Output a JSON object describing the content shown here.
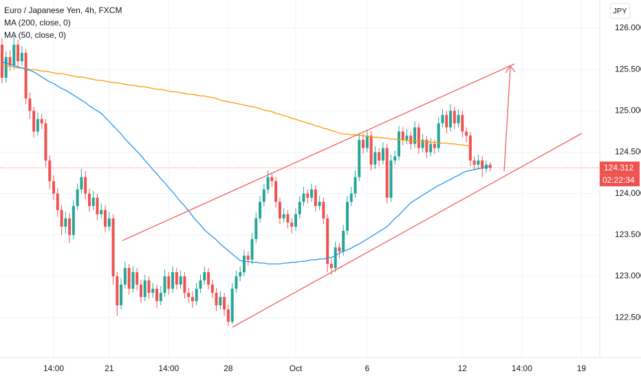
{
  "chart_data": {
    "type": "candlestick",
    "title": "Euro / Japanese Yen, 4h, FXCM",
    "currency": "JPY",
    "last_price": 124.312,
    "countdown": "02:22:34",
    "up_color": "#26a69a",
    "down_color": "#ef5350",
    "grid": true,
    "ylim": [
      122.02,
      126.34
    ],
    "yticks": [
      {
        "value": 122.5,
        "label": "122.500"
      },
      {
        "value": 123,
        "label": "123.000"
      },
      {
        "value": 123.5,
        "label": "123.500"
      },
      {
        "value": 124,
        "label": "124.000"
      },
      {
        "value": 124.5,
        "label": "124.500"
      },
      {
        "value": 125,
        "label": "125.000"
      },
      {
        "value": 125.5,
        "label": "125.500"
      },
      {
        "value": 126,
        "label": "126.000"
      }
    ],
    "categories": [
      null,
      null,
      null,
      null,
      null,
      null,
      null,
      null,
      null,
      null,
      null,
      null,
      null,
      "14:00",
      null,
      null,
      null,
      null,
      null,
      null,
      null,
      null,
      null,
      null,
      null,
      null,
      null,
      "21",
      null,
      null,
      null,
      null,
      null,
      null,
      null,
      null,
      null,
      null,
      null,
      null,
      null,
      null,
      "14:00",
      null,
      null,
      null,
      null,
      null,
      null,
      null,
      null,
      null,
      null,
      null,
      null,
      null,
      null,
      "28",
      null,
      null,
      null,
      null,
      null,
      null,
      null,
      null,
      null,
      null,
      null,
      null,
      null,
      null,
      null,
      null,
      "Oct",
      null,
      null,
      null,
      null,
      null,
      null,
      null,
      null,
      null,
      null,
      null,
      null,
      null,
      null,
      null,
      null,
      null,
      "6",
      null,
      null,
      null,
      null,
      null,
      null,
      null,
      null,
      null,
      null,
      null,
      null,
      null,
      null,
      null,
      null,
      null,
      null,
      null,
      null,
      null,
      null,
      null,
      "12",
      null,
      null,
      null,
      null,
      null,
      null,
      null,
      null,
      null,
      null,
      null,
      null,
      null,
      null,
      "14:00",
      null,
      null,
      null,
      null,
      null,
      null,
      null,
      null,
      null,
      null,
      null,
      null,
      null,
      null,
      "19"
    ],
    "open": [
      125.8,
      125.4,
      125.65,
      125.55,
      125.8,
      125.6,
      125.7,
      125.15,
      125.0,
      124.75,
      124.9,
      124.85,
      124.4,
      124.15,
      124.0,
      123.8,
      123.6,
      123.7,
      123.5,
      123.85,
      124.05,
      124.2,
      124.0,
      123.85,
      123.95,
      123.75,
      123.8,
      123.6,
      123.7,
      123.0,
      122.65,
      122.9,
      123.1,
      122.85,
      123.05,
      122.9,
      122.75,
      122.95,
      122.8,
      122.85,
      122.7,
      122.8,
      123.0,
      122.85,
      123.05,
      122.9,
      123.0,
      122.8,
      122.75,
      122.7,
      122.85,
      122.95,
      123.05,
      122.9,
      122.8,
      122.65,
      122.75,
      122.6,
      122.45,
      122.85,
      123.0,
      123.05,
      123.25,
      123.2,
      123.45,
      123.7,
      123.9,
      124.05,
      124.2,
      124.15,
      123.9,
      123.7,
      123.75,
      123.65,
      123.6,
      123.75,
      123.9,
      124.0,
      123.95,
      124.05,
      123.85,
      123.9,
      123.7,
      123.15,
      123.1,
      123.35,
      123.3,
      123.55,
      123.9,
      124.0,
      124.2,
      124.65,
      124.55,
      124.7,
      124.35,
      124.5,
      124.4,
      124.55,
      123.95,
      124.4,
      124.45,
      124.75,
      124.65,
      124.7,
      124.6,
      124.8,
      124.55,
      124.65,
      124.5,
      124.6,
      124.55,
      124.85,
      124.95,
      124.8,
      125.0,
      124.85,
      124.95,
      124.75,
      124.7,
      124.4,
      124.35,
      124.4,
      124.3,
      124.35,
      null,
      null,
      null,
      null,
      null,
      null,
      null,
      null,
      null,
      null,
      null,
      null,
      null,
      null,
      null,
      null,
      null,
      null,
      null,
      null,
      null,
      null,
      null
    ],
    "high": [
      125.88,
      125.72,
      125.73,
      125.9,
      125.86,
      125.78,
      125.75,
      125.22,
      125.05,
      124.98,
      124.96,
      124.9,
      124.46,
      124.22,
      124.07,
      123.86,
      123.78,
      123.76,
      123.92,
      124.12,
      124.3,
      124.27,
      124.06,
      124.03,
      124.0,
      123.88,
      123.86,
      123.78,
      123.75,
      123.05,
      122.98,
      123.18,
      123.15,
      123.12,
      123.1,
      122.96,
      123.02,
      123.0,
      122.92,
      122.9,
      122.88,
      123.08,
      123.05,
      123.12,
      123.1,
      123.07,
      123.05,
      122.86,
      122.82,
      122.92,
      123.02,
      123.12,
      123.1,
      122.96,
      122.86,
      122.82,
      122.8,
      122.66,
      122.92,
      123.07,
      123.12,
      123.32,
      123.3,
      123.52,
      123.77,
      123.97,
      124.12,
      124.28,
      124.25,
      124.2,
      123.95,
      123.82,
      123.8,
      123.7,
      123.82,
      123.97,
      124.08,
      124.05,
      124.12,
      124.1,
      123.97,
      123.95,
      123.75,
      123.22,
      123.42,
      123.4,
      123.62,
      123.97,
      124.08,
      124.28,
      124.73,
      124.72,
      124.77,
      124.75,
      124.57,
      124.55,
      124.62,
      124.6,
      124.47,
      124.52,
      124.82,
      124.8,
      124.78,
      124.75,
      124.87,
      124.85,
      124.72,
      124.7,
      124.67,
      124.65,
      124.92,
      125.02,
      125.0,
      125.08,
      125.05,
      125.02,
      125.0,
      124.8,
      124.75,
      124.45,
      124.47,
      124.45,
      124.4,
      124.38,
      null,
      null,
      null,
      null,
      null,
      null,
      null,
      null,
      null,
      null,
      null,
      null,
      null,
      null,
      null,
      null,
      null,
      null,
      null,
      null,
      null,
      null,
      null
    ],
    "low": [
      125.33,
      125.34,
      125.48,
      125.5,
      125.53,
      125.55,
      125.08,
      124.9,
      124.68,
      124.7,
      124.78,
      124.32,
      124.05,
      123.92,
      123.72,
      123.5,
      123.52,
      123.4,
      123.45,
      123.8,
      124.0,
      123.93,
      123.78,
      123.8,
      123.68,
      123.7,
      123.53,
      123.55,
      122.9,
      122.52,
      122.6,
      122.85,
      122.78,
      122.8,
      122.83,
      122.68,
      122.7,
      122.73,
      122.74,
      122.62,
      122.65,
      122.75,
      122.78,
      122.8,
      122.84,
      122.85,
      122.73,
      122.68,
      122.62,
      122.65,
      122.8,
      122.9,
      122.84,
      122.74,
      122.58,
      122.6,
      122.52,
      122.4,
      122.42,
      122.8,
      122.94,
      123.0,
      123.13,
      123.15,
      123.4,
      123.65,
      123.85,
      124.0,
      124.08,
      123.83,
      123.63,
      123.65,
      123.58,
      123.52,
      123.55,
      123.7,
      123.85,
      123.88,
      123.9,
      123.78,
      123.8,
      123.63,
      123.05,
      123.02,
      123.05,
      123.22,
      123.25,
      123.5,
      123.85,
      123.95,
      124.15,
      124.48,
      124.5,
      124.28,
      124.3,
      124.33,
      124.35,
      123.88,
      123.9,
      124.35,
      124.4,
      124.58,
      124.6,
      124.53,
      124.55,
      124.48,
      124.5,
      124.43,
      124.45,
      124.48,
      124.5,
      124.8,
      124.73,
      124.75,
      124.78,
      124.8,
      124.68,
      124.62,
      124.33,
      124.28,
      124.3,
      124.2,
      124.25,
      124.27,
      null,
      null,
      null,
      null,
      null,
      null,
      null,
      null,
      null,
      null,
      null,
      null,
      null,
      null,
      null,
      null,
      null,
      null,
      null,
      null,
      null,
      null,
      null
    ],
    "close": [
      125.4,
      125.65,
      125.55,
      125.8,
      125.6,
      125.7,
      125.15,
      125.0,
      124.75,
      124.9,
      124.85,
      124.4,
      124.15,
      124.0,
      123.8,
      123.6,
      123.7,
      123.5,
      123.85,
      124.05,
      124.2,
      124.0,
      123.85,
      123.95,
      123.75,
      123.8,
      123.6,
      123.7,
      123.0,
      122.65,
      122.9,
      123.1,
      122.85,
      123.05,
      122.9,
      122.75,
      122.95,
      122.8,
      122.85,
      122.7,
      122.8,
      123.0,
      122.85,
      123.05,
      122.9,
      123.0,
      122.8,
      122.75,
      122.7,
      122.85,
      122.95,
      123.05,
      122.9,
      122.8,
      122.65,
      122.75,
      122.6,
      122.45,
      122.85,
      123.0,
      123.05,
      123.25,
      123.2,
      123.45,
      123.7,
      123.9,
      124.05,
      124.2,
      124.15,
      123.9,
      123.7,
      123.75,
      123.65,
      123.6,
      123.75,
      123.9,
      124.0,
      123.95,
      124.05,
      123.85,
      123.9,
      123.7,
      123.15,
      123.1,
      123.35,
      123.3,
      123.55,
      123.9,
      124.0,
      124.2,
      124.65,
      124.55,
      124.7,
      124.35,
      124.5,
      124.4,
      124.55,
      123.95,
      124.4,
      124.45,
      124.75,
      124.65,
      124.7,
      124.6,
      124.8,
      124.55,
      124.65,
      124.5,
      124.6,
      124.55,
      124.85,
      124.95,
      124.8,
      125.0,
      124.85,
      124.95,
      124.75,
      124.7,
      124.4,
      124.35,
      124.4,
      124.3,
      124.35,
      124.312,
      null,
      null,
      null,
      null,
      null,
      null,
      null,
      null,
      null,
      null,
      null,
      null,
      null,
      null,
      null,
      null,
      null,
      null,
      null,
      null,
      null,
      null,
      null
    ],
    "series": [
      {
        "name": "MA (200, close, 0)",
        "color": "#ff9800",
        "values": [
          125.55,
          125.54,
          125.54,
          125.53,
          125.52,
          125.52,
          125.51,
          125.5,
          125.5,
          125.49,
          125.48,
          125.48,
          125.47,
          125.46,
          125.45,
          125.45,
          125.44,
          125.43,
          125.42,
          125.41,
          125.41,
          125.4,
          125.39,
          125.38,
          125.37,
          125.37,
          125.36,
          125.35,
          125.34,
          125.34,
          125.33,
          125.32,
          125.31,
          125.31,
          125.3,
          125.29,
          125.29,
          125.28,
          125.27,
          125.26,
          125.26,
          125.25,
          125.24,
          125.23,
          125.23,
          125.22,
          125.21,
          125.2,
          125.2,
          125.19,
          125.18,
          125.18,
          125.17,
          125.16,
          125.15,
          125.13,
          125.12,
          125.11,
          125.1,
          125.09,
          125.08,
          125.07,
          125.06,
          125.05,
          125.04,
          125.03,
          125.01,
          125.0,
          124.99,
          124.97,
          124.96,
          124.94,
          124.93,
          124.91,
          124.9,
          124.88,
          124.87,
          124.85,
          124.84,
          124.82,
          124.81,
          124.79,
          124.78,
          124.76,
          124.75,
          124.73,
          124.72,
          124.72,
          124.71,
          124.71,
          124.7,
          124.7,
          124.69,
          124.69,
          124.68,
          124.68,
          124.67,
          124.67,
          124.66,
          124.66,
          124.65,
          124.65,
          124.64,
          124.64,
          124.64,
          124.63,
          124.63,
          124.63,
          124.62,
          124.62,
          124.61,
          124.61,
          124.61,
          124.6,
          124.6,
          124.59,
          124.59,
          124.58,
          124.58,
          null,
          null,
          null,
          null,
          null,
          null,
          null,
          null,
          null,
          null,
          null,
          null,
          null,
          null,
          null,
          null,
          null,
          null,
          null,
          null,
          null,
          null,
          null,
          null,
          null,
          null,
          null,
          null
        ]
      },
      {
        "name": "MA (50, close, 0)",
        "color": "#2196f3",
        "values": [
          125.59,
          125.58,
          125.56,
          125.55,
          125.53,
          125.52,
          125.5,
          125.49,
          125.47,
          125.44,
          125.41,
          125.38,
          125.35,
          125.33,
          125.3,
          125.27,
          125.25,
          125.22,
          125.19,
          125.16,
          125.13,
          125.1,
          125.06,
          125.03,
          125.0,
          124.97,
          124.92,
          124.87,
          124.82,
          124.77,
          124.72,
          124.66,
          124.61,
          124.56,
          124.51,
          124.46,
          124.4,
          124.35,
          124.29,
          124.24,
          124.18,
          124.13,
          124.07,
          124.02,
          123.96,
          123.9,
          123.85,
          123.79,
          123.73,
          123.67,
          123.62,
          123.56,
          123.52,
          123.48,
          123.44,
          123.39,
          123.35,
          123.31,
          123.27,
          123.23,
          123.19,
          123.18,
          123.18,
          123.17,
          123.17,
          123.16,
          123.16,
          123.15,
          123.15,
          123.15,
          123.15,
          123.16,
          123.16,
          123.17,
          123.17,
          123.18,
          123.18,
          123.19,
          123.2,
          123.2,
          123.21,
          123.21,
          123.22,
          123.23,
          123.25,
          123.28,
          123.3,
          123.32,
          123.34,
          123.37,
          123.39,
          123.42,
          123.45,
          123.48,
          123.51,
          123.54,
          123.57,
          123.6,
          123.65,
          123.7,
          123.74,
          123.79,
          123.84,
          123.89,
          123.92,
          123.95,
          123.98,
          124.01,
          124.04,
          124.07,
          124.1,
          124.12,
          124.15,
          124.17,
          124.2,
          124.22,
          124.25,
          124.27,
          124.28,
          124.29,
          124.3,
          124.31,
          124.32,
          124.33,
          null,
          null,
          null,
          null,
          null,
          null,
          null,
          null,
          null,
          null,
          null,
          null,
          null,
          null,
          null,
          null,
          null,
          null,
          null,
          null,
          null,
          null,
          null
        ]
      }
    ]
  }
}
